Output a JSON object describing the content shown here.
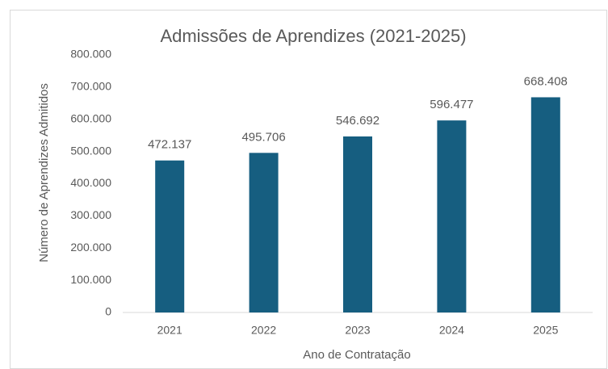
{
  "chart_data": {
    "type": "bar",
    "title": "Admissões de Aprendizes (2021-2025)",
    "xlabel": "Ano de Contratação",
    "ylabel": "Número de Aprendizes Admitidos",
    "categories": [
      "2021",
      "2022",
      "2023",
      "2024",
      "2025"
    ],
    "values": [
      472137,
      495706,
      546692,
      596477,
      668408
    ],
    "value_labels": [
      "472.137",
      "495.706",
      "546.692",
      "596.477",
      "668.408"
    ],
    "color": "#165e80",
    "ylim": [
      0,
      800000
    ],
    "yticks": [
      0,
      {
        "value": 100000,
        "label": "100.000"
      },
      {
        "value": 200000,
        "label": "200.000"
      },
      {
        "value": 300000,
        "label": "300.000"
      },
      {
        "value": 400000,
        "label": "400.000"
      },
      {
        "value": 500000,
        "label": "500.000"
      },
      {
        "value": 600000,
        "label": "600.000"
      },
      {
        "value": 700000,
        "label": "700.000"
      },
      {
        "value": 800000,
        "label": "800.000"
      }
    ],
    "grid": false
  }
}
